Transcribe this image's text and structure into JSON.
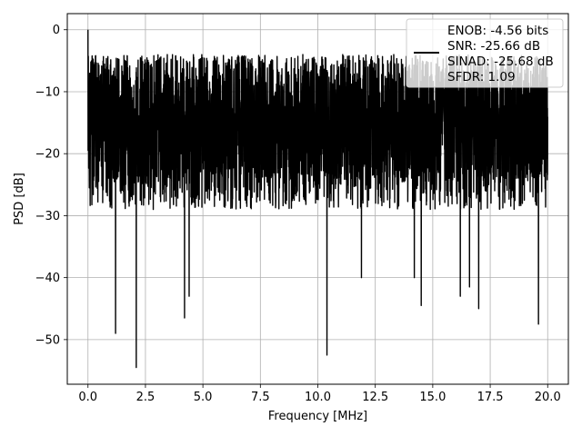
{
  "chart_data": {
    "type": "line",
    "title": "",
    "xlabel": "Frequency [MHz]",
    "ylabel": "PSD [dB]",
    "xlim": [
      -0.9,
      20.9
    ],
    "ylim": [
      -57.2,
      2.6
    ],
    "xticks": [
      0.0,
      2.5,
      5.0,
      7.5,
      10.0,
      12.5,
      15.0,
      17.5,
      20.0
    ],
    "xtick_labels": [
      "0.0",
      "2.5",
      "5.0",
      "7.5",
      "10.0",
      "12.5",
      "15.0",
      "17.5",
      "20.0"
    ],
    "yticks": [
      0,
      -10,
      -20,
      -30,
      -40,
      -50
    ],
    "ytick_labels": [
      "0",
      "−10",
      "−20",
      "−30",
      "−40",
      "−50"
    ],
    "grid": true,
    "legend_position": "top-right",
    "legend_lines": [
      "ENOB: -4.56 bits",
      "SNR: -25.66 dB",
      "SINAD: -25.68 dB",
      "SFDR: 1.09"
    ],
    "series": [
      {
        "color": "#000000",
        "sample_count": 4000,
        "x": [
          0.0,
          20.0
        ],
        "noise_floor_db": [
          -29,
          -4
        ],
        "notable_points": [
          {
            "x": 0.0,
            "y": 0.0
          },
          {
            "x": 1.2,
            "y": -49.0
          },
          {
            "x": 2.1,
            "y": -54.5
          },
          {
            "x": 4.2,
            "y": -46.5
          },
          {
            "x": 4.4,
            "y": -43.0
          },
          {
            "x": 10.4,
            "y": -52.5
          },
          {
            "x": 11.9,
            "y": -40.0
          },
          {
            "x": 14.2,
            "y": -40.0
          },
          {
            "x": 14.5,
            "y": -44.5
          },
          {
            "x": 16.2,
            "y": -43.0
          },
          {
            "x": 16.6,
            "y": -41.5
          },
          {
            "x": 17.0,
            "y": -45.0
          },
          {
            "x": 19.6,
            "y": -47.5
          }
        ]
      }
    ]
  }
}
